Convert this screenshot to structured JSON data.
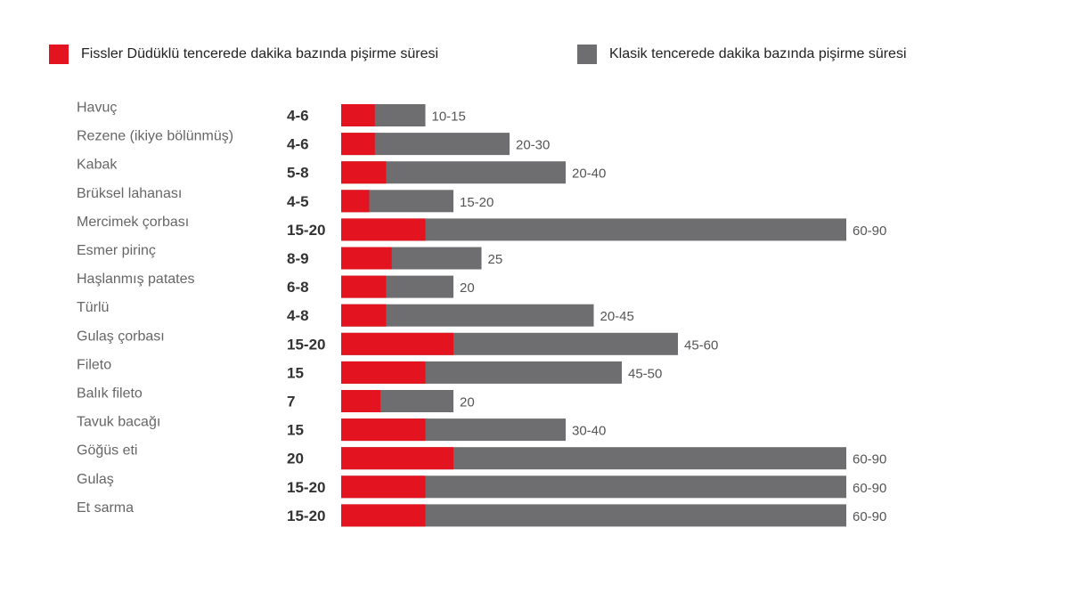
{
  "colors": {
    "fissler": "#e3141f",
    "classic": "#6e6e70",
    "category_text": "#666666",
    "fissler_text": "#333333",
    "classic_text": "#555555"
  },
  "legend": [
    {
      "label": "Fissler Düdüklü tencerede dakika bazında pişirme süresi",
      "color": "#e3141f"
    },
    {
      "label": "Klasik tencerede dakika bazında pişirme süresi",
      "color": "#6e6e70"
    }
  ],
  "chart_data": {
    "type": "bar",
    "orientation": "horizontal",
    "stacked": false,
    "grid": false,
    "legend_position": "top",
    "categories": [
      "Havuç",
      "Rezene (ikiye bölünmüş)",
      "Kabak",
      "Brüksel lahanası",
      "Mercimek çorbası",
      "Esmer pirinç",
      "Haşlanmış patates",
      "Türlü",
      "Gulaş çorbası",
      "Fileto",
      "Balık fileto",
      "Tavuk bacağı",
      "Göğüs eti",
      "Gulaş",
      "Et sarma"
    ],
    "series": [
      {
        "name": "Fissler Düdüklü tencerede dakika bazında pişirme süresi",
        "labels": [
          "4-6",
          "4-6",
          "5-8",
          "4-5",
          "15-20",
          "8-9",
          "6-8",
          "4-8",
          "15-20",
          "15",
          "7",
          "15",
          "20",
          "15-20",
          "15-20"
        ],
        "values": [
          6,
          6,
          8,
          5,
          15,
          9,
          8,
          8,
          20,
          15,
          7,
          15,
          20,
          15,
          15
        ]
      },
      {
        "name": "Klasik tencerede dakika bazında pişirme süresi",
        "labels": [
          "10-15",
          "20-30",
          "20-40",
          "15-20",
          "60-90",
          "25",
          "20",
          "20-45",
          "45-60",
          "45-50",
          "20",
          "30-40",
          "60-90",
          "60-90",
          "60-90"
        ],
        "values": [
          15,
          30,
          40,
          20,
          90,
          25,
          20,
          45,
          60,
          50,
          20,
          40,
          90,
          90,
          90
        ]
      }
    ],
    "xlim": [
      0,
      90
    ]
  }
}
